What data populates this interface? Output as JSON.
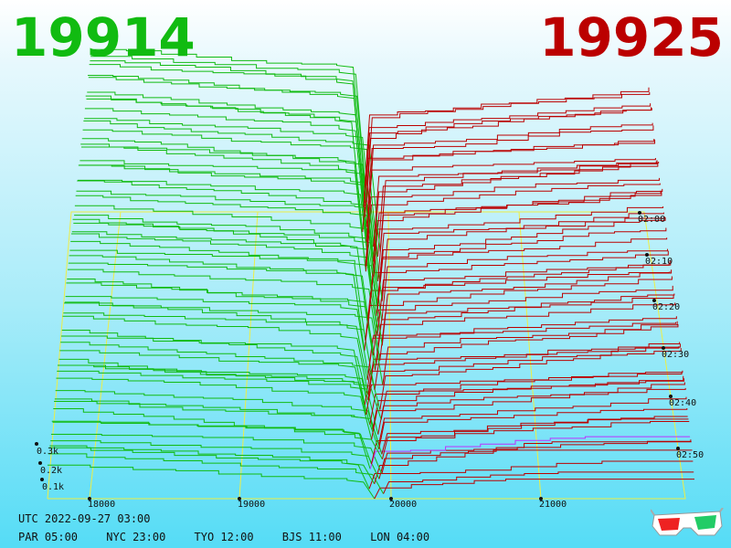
{
  "header": {
    "bid_price": "19914",
    "ask_price": "19925",
    "bid_color": "#11bb11",
    "ask_color": "#bb0000"
  },
  "footer": {
    "utc_time": "UTC 2022-09-27 03:00",
    "timezones": [
      "PAR 05:00",
      "NYC 23:00",
      "TYO 12:00",
      "BJS 11:00",
      "LON 04:00"
    ]
  },
  "icons": {
    "glasses": "3d-glasses-icon"
  },
  "chart_data": {
    "type": "area",
    "style": "3d-depth-history",
    "x_ticks": [
      "18000",
      "19000",
      "20000",
      "21000"
    ],
    "z_ticks": [
      "0.1k",
      "0.2k",
      "0.3k"
    ],
    "time_ticks": [
      "02:00",
      "02:10",
      "02:20",
      "02:30",
      "02:40",
      "02:50"
    ],
    "series": [
      {
        "name": "bids",
        "color": "#11bb11"
      },
      {
        "name": "asks",
        "color": "#bb0000"
      }
    ],
    "latest_ask_color": "#bb33ff",
    "grid": true,
    "grid_color": "#eeee44"
  }
}
